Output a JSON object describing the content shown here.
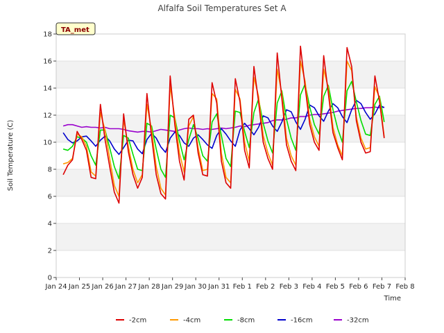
{
  "chart_data": {
    "type": "line",
    "title": "Alfalfa Soil Temperatures Set A",
    "xlabel": "Time",
    "ylabel": "Soil Temperature (C)",
    "badge": "TA_met",
    "x_tick_labels": [
      "Jan 24",
      "Jan 25",
      "Jan 26",
      "Jan 27",
      "Jan 28",
      "Jan 29",
      "Jan 30",
      "Jan 31",
      "Feb 1",
      "Feb 2",
      "Feb 3",
      "Feb 4",
      "Feb 5",
      "Feb 6",
      "Feb 7",
      "Feb 8"
    ],
    "y_ticks": [
      0,
      2,
      4,
      6,
      8,
      10,
      12,
      14,
      16,
      18
    ],
    "xlim_days": [
      0,
      15
    ],
    "ylim": [
      0,
      18
    ],
    "grid": "horizontal bands",
    "legend_position": "bottom-center",
    "x_days": [
      0.3,
      0.5,
      0.7,
      0.9,
      1.1,
      1.3,
      1.5,
      1.7,
      1.9,
      2.1,
      2.3,
      2.5,
      2.7,
      2.9,
      3.1,
      3.3,
      3.5,
      3.7,
      3.9,
      4.1,
      4.3,
      4.5,
      4.7,
      4.9,
      5.1,
      5.3,
      5.5,
      5.7,
      5.9,
      6.1,
      6.3,
      6.5,
      6.7,
      6.9,
      7.1,
      7.3,
      7.5,
      7.7,
      7.9,
      8.1,
      8.3,
      8.5,
      8.7,
      8.9,
      9.1,
      9.3,
      9.5,
      9.7,
      9.9,
      10.1,
      10.3,
      10.5,
      10.7,
      10.9,
      11.1,
      11.3,
      11.5,
      11.7,
      11.9,
      12.1,
      12.3,
      12.5,
      12.7,
      12.9,
      13.1,
      13.3,
      13.5,
      13.7,
      13.9,
      14.1,
      14.3,
      14.5
    ],
    "series": [
      {
        "name": "-2cm",
        "color": "#dd0000",
        "values": [
          7.6,
          8.3,
          8.7,
          10.8,
          10.2,
          9.4,
          7.4,
          7.3,
          12.8,
          10.2,
          8.2,
          6.3,
          5.5,
          12.1,
          9.3,
          7.6,
          6.6,
          7.4,
          13.6,
          10.4,
          7.6,
          6.2,
          5.8,
          14.9,
          11.3,
          8.6,
          7.2,
          11.7,
          12.0,
          9.2,
          7.6,
          7.5,
          14.4,
          12.9,
          8.6,
          7.0,
          6.6,
          14.7,
          13.0,
          9.4,
          8.1,
          15.6,
          13.0,
          10.0,
          8.8,
          8.0,
          16.6,
          13.2,
          9.8,
          8.6,
          7.9,
          17.1,
          14.1,
          11.3,
          10.0,
          9.4,
          16.4,
          13.6,
          10.7,
          9.6,
          8.7,
          17.0,
          15.6,
          11.6,
          10.0,
          9.2,
          9.3,
          14.9,
          13.0,
          10.3
        ]
      },
      {
        "name": "-4cm",
        "color": "#ff9900",
        "values": [
          8.4,
          8.5,
          8.8,
          10.6,
          10.4,
          9.7,
          7.8,
          7.5,
          12.2,
          10.9,
          8.8,
          6.8,
          6.0,
          11.7,
          9.7,
          8.0,
          7.0,
          7.6,
          12.8,
          10.9,
          8.2,
          6.6,
          6.1,
          14.2,
          11.8,
          9.2,
          7.8,
          11.2,
          11.9,
          9.6,
          7.9,
          8.0,
          13.6,
          13.2,
          9.2,
          7.4,
          7.0,
          13.9,
          13.2,
          10.0,
          8.6,
          14.8,
          13.4,
          10.5,
          9.2,
          8.3,
          15.4,
          13.6,
          10.3,
          9.0,
          8.3,
          16.0,
          14.5,
          11.7,
          10.4,
          9.7,
          15.4,
          14.0,
          11.1,
          9.8,
          9.0,
          16.0,
          15.3,
          11.9,
          10.3,
          9.5,
          9.6,
          14.1,
          13.3,
          10.4
        ]
      },
      {
        "name": "-8cm",
        "color": "#00dd00",
        "values": [
          9.5,
          9.4,
          9.7,
          10.4,
          10.3,
          10.0,
          9.0,
          8.3,
          10.9,
          10.9,
          9.6,
          8.2,
          7.3,
          10.5,
          10.3,
          9.1,
          8.0,
          7.9,
          11.4,
          11.2,
          9.5,
          8.0,
          7.4,
          12.0,
          11.8,
          10.1,
          8.7,
          10.2,
          11.3,
          10.3,
          9.0,
          8.6,
          11.5,
          12.1,
          10.5,
          8.8,
          8.2,
          12.3,
          12.2,
          10.8,
          9.6,
          12.2,
          13.2,
          11.4,
          10.1,
          9.2,
          12.9,
          13.8,
          11.7,
          10.3,
          9.4,
          13.5,
          14.3,
          12.6,
          11.3,
          10.6,
          13.4,
          14.2,
          12.4,
          11.0,
          10.0,
          13.8,
          14.5,
          13.0,
          11.6,
          10.6,
          10.5,
          12.8,
          13.4,
          11.5
        ]
      },
      {
        "name": "-16cm",
        "color": "#0000cc",
        "values": [
          10.7,
          10.2,
          9.95,
          10.1,
          10.4,
          10.45,
          10.1,
          9.7,
          10.15,
          10.45,
          10.1,
          9.5,
          9.1,
          9.6,
          10.15,
          10.1,
          9.5,
          9.15,
          10.2,
          10.65,
          10.3,
          9.65,
          9.25,
          10.3,
          10.75,
          10.5,
          9.95,
          9.7,
          10.3,
          10.55,
          10.2,
          9.8,
          9.55,
          10.5,
          11.0,
          10.6,
          10.1,
          9.7,
          10.9,
          11.4,
          11.0,
          10.55,
          11.1,
          11.95,
          11.8,
          11.2,
          10.8,
          11.5,
          12.4,
          12.25,
          11.5,
          10.95,
          11.7,
          12.75,
          12.55,
          11.95,
          11.55,
          12.3,
          12.85,
          12.55,
          11.9,
          11.45,
          12.4,
          13.1,
          12.85,
          12.2,
          11.7,
          12.1,
          12.75,
          12.55
        ]
      },
      {
        "name": "-32cm",
        "color": "#9900cc",
        "values": [
          11.2,
          11.3,
          11.3,
          11.2,
          11.1,
          11.15,
          11.1,
          11.1,
          11.05,
          11.1,
          11.0,
          11.0,
          11.0,
          10.95,
          10.85,
          10.8,
          10.75,
          10.8,
          10.8,
          10.75,
          10.85,
          10.95,
          10.9,
          10.85,
          10.8,
          10.9,
          11.0,
          11.05,
          11.0,
          11.0,
          10.95,
          11.0,
          10.95,
          11.0,
          11.05,
          11.0,
          11.05,
          11.1,
          11.2,
          11.15,
          11.25,
          11.3,
          11.35,
          11.4,
          11.45,
          11.6,
          11.65,
          11.65,
          11.7,
          11.8,
          11.8,
          11.9,
          11.9,
          12.0,
          12.05,
          12.05,
          12.1,
          12.15,
          12.2,
          12.3,
          12.35,
          12.4,
          12.45,
          12.5,
          12.5,
          12.55,
          12.55,
          12.6,
          12.55,
          12.6
        ]
      }
    ]
  }
}
